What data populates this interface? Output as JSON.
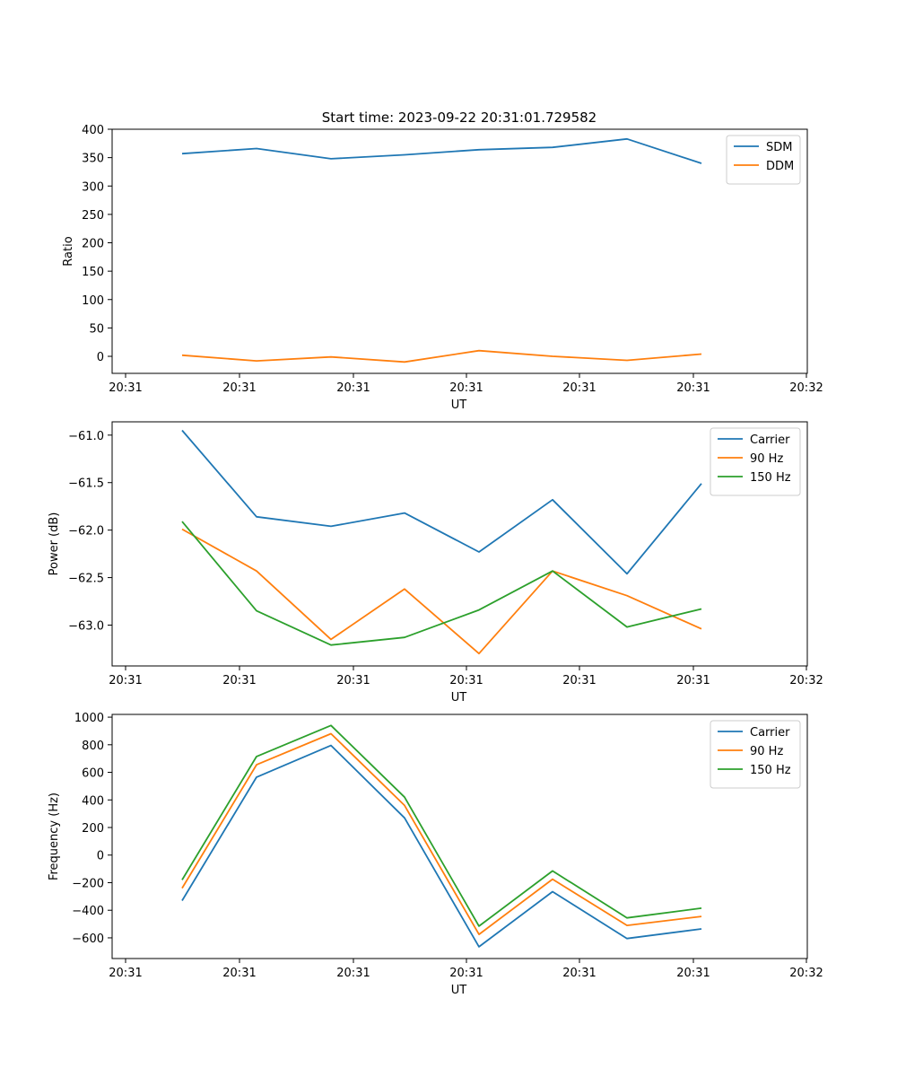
{
  "figure_title": "Start time: 2023-09-22 20:31:01.729582",
  "chart_data": [
    {
      "type": "line",
      "title": "Start time: 2023-09-22 20:31:01.729582",
      "xlabel": "UT",
      "ylabel": "Ratio",
      "x_tick_labels": [
        "20:31",
        "20:31",
        "20:31",
        "20:31",
        "20:31",
        "20:31",
        "20:32"
      ],
      "yticks": [
        0,
        50,
        100,
        150,
        200,
        250,
        300,
        350,
        400
      ],
      "ylim": [
        -30,
        400
      ],
      "legend_position": "top-right",
      "series": [
        {
          "name": "SDM",
          "color": "#1f77b4",
          "values": [
            357,
            366,
            348,
            355,
            364,
            368,
            383,
            340
          ]
        },
        {
          "name": "DDM",
          "color": "#ff7f0e",
          "values": [
            2,
            -8,
            -1,
            -10,
            10,
            0,
            -7,
            4
          ]
        }
      ]
    },
    {
      "type": "line",
      "xlabel": "UT",
      "ylabel": "Power (dB)",
      "x_tick_labels": [
        "20:31",
        "20:31",
        "20:31",
        "20:31",
        "20:31",
        "20:31",
        "20:32"
      ],
      "yticks": [
        -63.0,
        -62.5,
        -62.0,
        -61.5,
        -61.0
      ],
      "ytick_labels": [
        "−63.0",
        "−62.5",
        "−62.0",
        "−61.5",
        "−61.0"
      ],
      "ylim": [
        -63.43,
        -60.86
      ],
      "legend_position": "top-right",
      "series": [
        {
          "name": "Carrier",
          "color": "#1f77b4",
          "values": [
            -60.95,
            -61.86,
            -61.96,
            -61.82,
            -62.23,
            -61.68,
            -62.46,
            -61.51
          ]
        },
        {
          "name": "90 Hz",
          "color": "#ff7f0e",
          "values": [
            -61.99,
            -62.43,
            -63.15,
            -62.62,
            -63.3,
            -62.43,
            -62.69,
            -63.04
          ]
        },
        {
          "name": "150 Hz",
          "color": "#2ca02c",
          "values": [
            -61.91,
            -62.85,
            -63.21,
            -63.13,
            -62.84,
            -62.43,
            -63.02,
            -62.83
          ]
        }
      ]
    },
    {
      "type": "line",
      "xlabel": "UT",
      "ylabel": "Frequency (Hz)",
      "x_tick_labels": [
        "20:31",
        "20:31",
        "20:31",
        "20:31",
        "20:31",
        "20:31",
        "20:32"
      ],
      "yticks": [
        -600,
        -400,
        -200,
        0,
        200,
        400,
        600,
        800,
        1000
      ],
      "ytick_labels": [
        "−600",
        "−400",
        "−200",
        "0",
        "200",
        "400",
        "600",
        "800",
        "1000"
      ],
      "ylim": [
        -750,
        1020
      ],
      "legend_position": "top-right",
      "series": [
        {
          "name": "Carrier",
          "color": "#1f77b4",
          "values": [
            -330,
            565,
            795,
            270,
            -665,
            -265,
            -605,
            -535
          ]
        },
        {
          "name": "90 Hz",
          "color": "#ff7f0e",
          "values": [
            -240,
            655,
            880,
            360,
            -575,
            -175,
            -510,
            -445
          ]
        },
        {
          "name": "150 Hz",
          "color": "#2ca02c",
          "values": [
            -180,
            715,
            940,
            420,
            -515,
            -115,
            -455,
            -385
          ]
        }
      ]
    }
  ]
}
